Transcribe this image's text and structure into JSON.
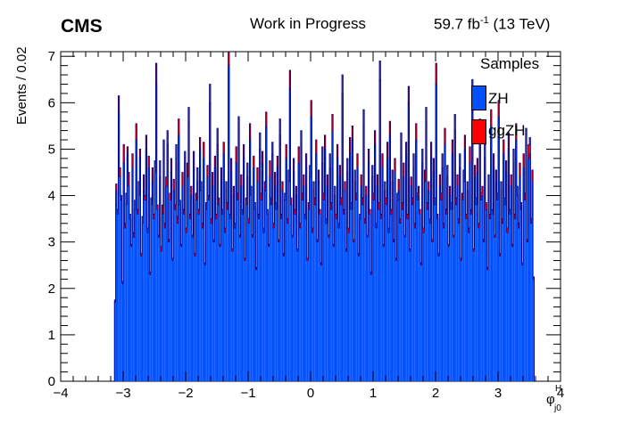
{
  "header": {
    "experiment": "CMS",
    "status": "Work in Progress",
    "lumi_value": "59.7 fb",
    "lumi_exp": "-1",
    "energy": "(13 TeV)"
  },
  "legend": {
    "title": "Samples",
    "entries": [
      {
        "label": "ZH",
        "color": "#0050ff"
      },
      {
        "label": "ggZH",
        "color": "#ff0000"
      }
    ]
  },
  "chart_data": {
    "type": "bar",
    "stacked": true,
    "ylabel": "Events / 0.02",
    "xlabel": "φ",
    "xlabel_sup": "H",
    "xlabel_sub": "j0",
    "xlim": [
      -4,
      4
    ],
    "ylim": [
      0,
      7.1
    ],
    "x_ticks": [
      "−4",
      "−3",
      "−2",
      "−1",
      "0",
      "1",
      "2",
      "3",
      "4"
    ],
    "x_tick_values": [
      -4,
      -3,
      -2,
      -1,
      0,
      1,
      2,
      3,
      4
    ],
    "y_ticks": [
      "0",
      "1",
      "2",
      "3",
      "4",
      "5",
      "6",
      "7"
    ],
    "y_tick_values": [
      0,
      1,
      2,
      3,
      4,
      5,
      6,
      7
    ],
    "bin_width": 0.02,
    "x_start": -3.14,
    "series": [
      {
        "name": "ZH",
        "color": "#0050ff",
        "values": [
          1.7,
          4.1,
          3.6,
          5.8,
          4.4,
          3.9,
          2.1,
          4.7,
          3.3,
          3.8,
          4.9,
          4.2,
          3.5,
          2.9,
          4.6,
          3.1,
          3.7,
          5.2,
          3.6,
          4.0,
          4.8,
          2.7,
          3.4,
          4.1,
          3.9,
          5.0,
          3.2,
          4.6,
          2.3,
          3.8,
          4.3,
          3.5,
          4.5,
          6.4,
          3.7,
          3.1,
          4.4,
          2.8,
          3.6,
          4.9,
          3.3,
          4.2,
          5.1,
          3.0,
          3.9,
          4.5,
          2.6,
          4.1,
          3.7,
          4.8,
          3.4,
          5.3,
          3.8,
          2.9,
          4.2,
          3.6,
          4.7,
          3.2,
          4.4,
          5.6,
          3.5,
          4.0,
          3.1,
          4.6,
          2.7,
          3.9,
          4.3,
          3.6,
          5.0,
          4.1,
          3.3,
          4.8,
          2.5,
          3.7,
          4.4,
          3.9,
          6.0,
          3.4,
          4.2,
          3.0,
          4.6,
          3.5,
          5.1,
          3.8,
          2.9,
          4.3,
          3.6,
          4.9,
          3.2,
          4.1,
          3.7,
          6.8,
          3.5,
          4.5,
          2.8,
          4.0,
          3.3,
          4.7,
          3.9,
          5.4,
          3.1,
          4.2,
          3.6,
          4.8,
          2.6,
          3.8,
          4.4,
          3.4,
          5.2,
          4.0,
          3.1,
          4.6,
          3.7,
          2.4,
          4.3,
          3.5,
          5.0,
          3.9,
          4.7,
          3.2,
          4.1,
          5.5,
          3.6,
          2.9,
          4.4,
          3.8,
          4.9,
          3.3,
          4.2,
          3.7,
          4.6,
          3.0,
          5.3,
          3.5,
          4.1,
          2.7,
          3.9,
          4.8,
          3.4,
          4.3,
          6.3,
          3.8,
          3.1,
          4.5,
          3.6,
          4.0,
          2.8,
          4.7,
          3.3,
          5.1,
          3.9,
          4.2,
          3.5,
          4.6,
          2.6,
          3.7,
          4.4,
          5.7,
          3.2,
          4.1,
          3.8,
          4.9,
          3.0,
          4.3,
          3.6,
          2.5,
          4.7,
          3.9,
          5.0,
          3.4,
          4.2,
          3.1,
          4.6,
          3.7,
          5.4,
          2.9,
          4.0,
          3.5,
          4.8,
          3.3,
          4.4,
          3.8,
          6.2,
          3.6,
          4.1,
          2.8,
          4.5,
          3.2,
          4.9,
          3.7,
          5.2,
          3.0,
          4.3,
          3.9,
          4.6,
          2.7,
          3.5,
          4.2,
          3.8,
          5.5,
          3.4,
          4.0,
          3.1,
          4.7,
          3.6,
          2.3,
          4.4,
          3.9,
          5.1,
          3.3,
          4.2,
          3.7,
          6.5,
          3.5,
          4.6,
          2.9,
          4.1,
          3.8,
          4.8,
          3.2,
          5.3,
          3.6,
          4.3,
          3.0,
          4.5,
          2.6,
          3.9,
          4.1,
          3.4,
          5.0,
          3.7,
          4.4,
          3.1,
          4.9,
          3.5,
          6.0,
          2.8,
          4.2,
          3.8,
          4.6,
          3.3,
          5.2,
          3.9,
          4.0,
          3.6,
          2.5,
          4.7,
          3.2,
          4.3,
          5.6,
          3.7,
          4.1,
          3.4,
          4.8,
          3.0,
          4.5,
          3.8,
          6.4,
          3.5,
          2.7,
          4.2,
          3.9,
          4.6,
          3.3,
          5.1,
          3.6,
          4.4,
          2.9,
          4.0,
          3.7,
          4.9,
          3.1,
          5.4,
          3.8,
          4.2,
          3.4,
          4.6,
          2.6,
          3.9,
          4.3,
          5.0,
          3.5,
          4.1,
          3.2,
          4.7,
          3.6,
          6.1,
          2.8,
          4.4,
          3.8,
          4.5,
          3.3,
          5.3,
          3.9,
          4.0,
          3.0,
          4.8,
          3.7,
          2.4,
          4.2,
          3.5,
          5.5,
          3.6,
          4.6,
          3.1,
          4.3,
          3.9,
          5.7,
          2.7,
          4.1,
          3.4,
          4.9,
          3.8,
          4.5,
          3.2,
          5.0,
          3.6,
          4.2,
          2.9,
          4.7,
          3.5,
          5.2,
          4.0,
          3.3,
          4.4,
          3.7,
          2.5,
          4.6,
          3.9,
          5.1,
          3.0,
          4.8,
          4.9,
          3.4,
          4.3,
          2.2
        ]
      },
      {
        "name": "ggZH",
        "color": "#ff0000",
        "values": [
          0.05,
          0.15,
          0.1,
          0.35,
          0.2,
          0.1,
          0.05,
          0.4,
          0.1,
          0.25,
          0.15,
          0.3,
          0.1,
          0.05,
          0.3,
          0.1,
          0.2,
          0.35,
          0.1,
          0.3,
          0.2,
          0.05,
          0.15,
          0.35,
          0.1,
          0.3,
          0.1,
          0.25,
          0.05,
          0.15,
          0.3,
          0.1,
          0.25,
          0.45,
          0.1,
          0.05,
          0.35,
          0.1,
          0.2,
          0.3,
          0.1,
          0.2,
          0.3,
          0.05,
          0.15,
          0.3,
          0.05,
          0.25,
          0.1,
          0.3,
          0.15,
          0.35,
          0.1,
          0.05,
          0.3,
          0.1,
          0.25,
          0.1,
          0.3,
          0.3,
          0.1,
          0.2,
          0.05,
          0.35,
          0.05,
          0.15,
          0.3,
          0.1,
          0.25,
          0.2,
          0.1,
          0.35,
          0.05,
          0.15,
          0.25,
          0.1,
          0.4,
          0.1,
          0.3,
          0.05,
          0.25,
          0.1,
          0.35,
          0.15,
          0.05,
          0.3,
          0.1,
          0.25,
          0.1,
          0.2,
          0.15,
          0.3,
          0.1,
          0.3,
          0.05,
          0.2,
          0.1,
          0.35,
          0.15,
          0.3,
          0.05,
          0.25,
          0.1,
          0.3,
          0.05,
          0.15,
          0.3,
          0.1,
          0.35,
          0.2,
          0.05,
          0.25,
          0.15,
          0.05,
          0.3,
          0.1,
          0.35,
          0.15,
          0.25,
          0.1,
          0.2,
          0.3,
          0.1,
          0.05,
          0.35,
          0.15,
          0.25,
          0.1,
          0.3,
          0.15,
          0.25,
          0.05,
          0.35,
          0.1,
          0.2,
          0.05,
          0.15,
          0.3,
          0.1,
          0.25,
          0.4,
          0.15,
          0.05,
          0.3,
          0.1,
          0.2,
          0.05,
          0.35,
          0.1,
          0.3,
          0.15,
          0.25,
          0.1,
          0.3,
          0.05,
          0.15,
          0.25,
          0.35,
          0.1,
          0.2,
          0.15,
          0.3,
          0.05,
          0.25,
          0.1,
          0.05,
          0.35,
          0.15,
          0.3,
          0.1,
          0.25,
          0.05,
          0.3,
          0.15,
          0.35,
          0.05,
          0.2,
          0.1,
          0.3,
          0.1,
          0.25,
          0.15,
          0.4,
          0.1,
          0.2,
          0.05,
          0.3,
          0.1,
          0.35,
          0.15,
          0.3,
          0.05,
          0.25,
          0.15,
          0.3,
          0.05,
          0.1,
          0.25,
          0.15,
          0.35,
          0.1,
          0.2,
          0.05,
          0.3,
          0.1,
          0.05,
          0.25,
          0.15,
          0.3,
          0.1,
          0.25,
          0.15,
          0.4,
          0.1,
          0.3,
          0.05,
          0.2,
          0.15,
          0.35,
          0.1,
          0.3,
          0.1,
          0.25,
          0.05,
          0.3,
          0.05,
          0.15,
          0.25,
          0.1,
          0.35,
          0.15,
          0.3,
          0.05,
          0.25,
          0.1,
          0.35,
          0.05,
          0.2,
          0.15,
          0.3,
          0.1,
          0.35,
          0.15,
          0.2,
          0.1,
          0.05,
          0.3,
          0.1,
          0.25,
          0.3,
          0.15,
          0.2,
          0.1,
          0.35,
          0.05,
          0.3,
          0.15,
          0.45,
          0.1,
          0.05,
          0.25,
          0.15,
          0.3,
          0.1,
          0.35,
          0.1,
          0.25,
          0.05,
          0.2,
          0.15,
          0.3,
          0.05,
          0.35,
          0.15,
          0.25,
          0.1,
          0.3,
          0.05,
          0.15,
          0.25,
          0.3,
          0.1,
          0.2,
          0.1,
          0.35,
          0.1,
          0.4,
          0.05,
          0.25,
          0.15,
          0.3,
          0.1,
          0.35,
          0.15,
          0.2,
          0.05,
          0.3,
          0.15,
          0.05,
          0.25,
          0.1,
          0.35,
          0.1,
          0.3,
          0.05,
          0.25,
          0.15,
          0.35,
          0.05,
          0.2,
          0.1,
          0.3,
          0.15,
          0.25,
          0.1,
          0.35,
          0.1,
          0.25,
          0.05,
          0.3,
          0.1,
          0.35,
          0.2,
          0.1,
          0.3,
          0.15,
          0.05,
          0.3,
          0.15,
          0.35,
          0.05,
          0.3,
          0.35,
          0.1,
          0.25,
          0.05
        ]
      }
    ]
  }
}
